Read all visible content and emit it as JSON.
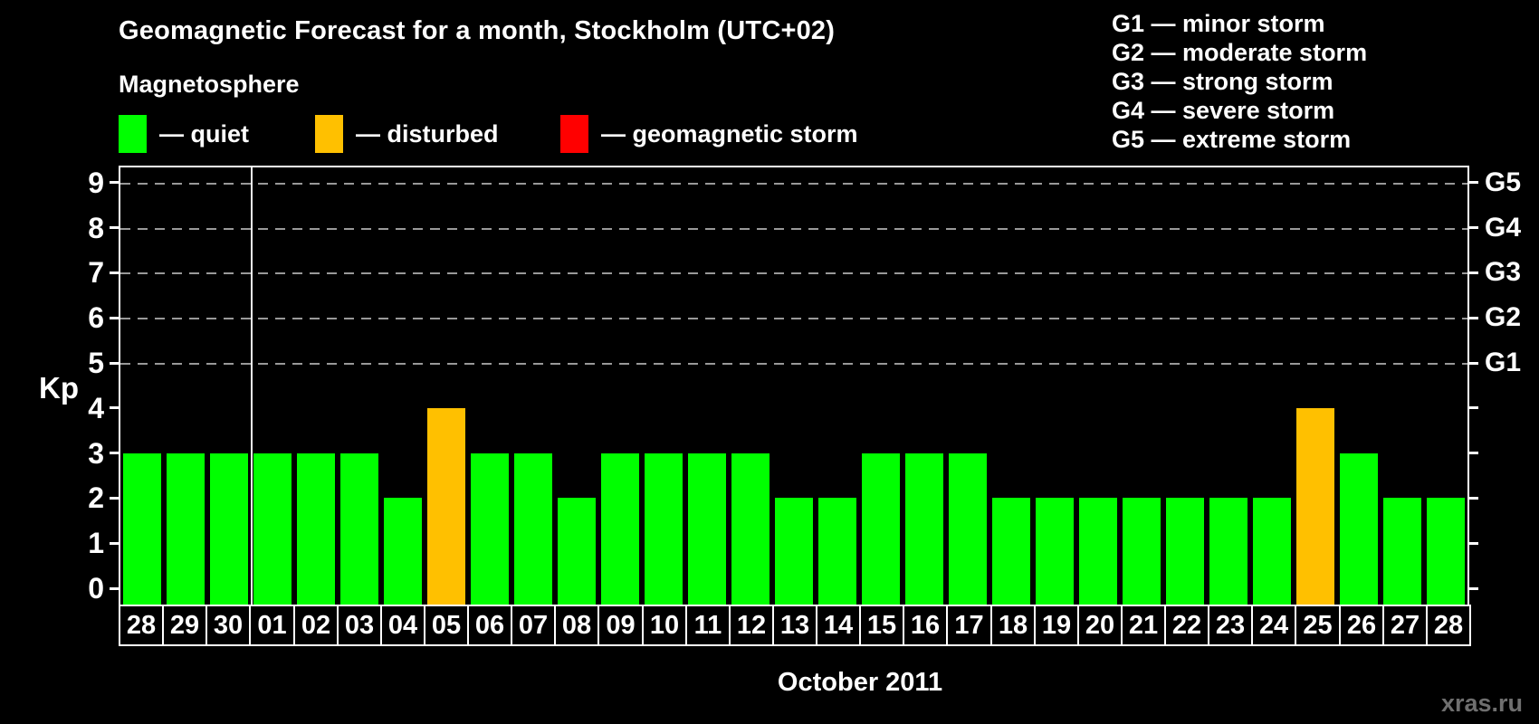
{
  "header": {
    "title": "Geomagnetic Forecast for a month, Stockholm (UTC+02)",
    "subtitle": "Magnetosphere"
  },
  "legend": {
    "items": [
      {
        "name": "quiet",
        "label": "— quiet",
        "color": "#00ff00"
      },
      {
        "name": "disturbed",
        "label": "— disturbed",
        "color": "#ffc000"
      },
      {
        "name": "geomagnetic-storm",
        "label": "— geomagnetic storm",
        "color": "#ff0000"
      }
    ]
  },
  "storm_scale_legend": {
    "lines": [
      "G1 — minor storm",
      "G2 — moderate storm",
      "G3 — strong storm",
      "G4 — severe storm",
      "G5 — extreme storm"
    ]
  },
  "chart_data": {
    "type": "bar",
    "title": "Geomagnetic Forecast for a month, Stockholm (UTC+02)",
    "xlabel": "October 2011",
    "ylabel": "Kp",
    "ylim": [
      0,
      9
    ],
    "yticks": [
      0,
      1,
      2,
      3,
      4,
      5,
      6,
      7,
      8,
      9
    ],
    "gridlines_at": [
      5,
      6,
      7,
      8,
      9
    ],
    "grid": "dashed horizontal at storm levels only",
    "legend_position": "top",
    "right_axis_labels": [
      {
        "label": "G1",
        "kp": 5
      },
      {
        "label": "G2",
        "kp": 6
      },
      {
        "label": "G3",
        "kp": 7
      },
      {
        "label": "G4",
        "kp": 8
      },
      {
        "label": "G5",
        "kp": 9
      }
    ],
    "categories": [
      "28",
      "29",
      "30",
      "01",
      "02",
      "03",
      "04",
      "05",
      "06",
      "07",
      "08",
      "09",
      "10",
      "11",
      "12",
      "13",
      "14",
      "15",
      "16",
      "17",
      "18",
      "19",
      "20",
      "21",
      "22",
      "23",
      "24",
      "25",
      "26",
      "27",
      "28"
    ],
    "values": [
      3,
      3,
      3,
      3,
      3,
      3,
      2,
      4,
      3,
      3,
      2,
      3,
      3,
      3,
      3,
      2,
      2,
      3,
      3,
      3,
      2,
      2,
      2,
      2,
      2,
      2,
      2,
      4,
      3,
      2,
      2
    ],
    "states": [
      "quiet",
      "quiet",
      "quiet",
      "quiet",
      "quiet",
      "quiet",
      "quiet",
      "disturbed",
      "quiet",
      "quiet",
      "quiet",
      "quiet",
      "quiet",
      "quiet",
      "quiet",
      "quiet",
      "quiet",
      "quiet",
      "quiet",
      "quiet",
      "quiet",
      "quiet",
      "quiet",
      "quiet",
      "quiet",
      "quiet",
      "quiet",
      "disturbed",
      "quiet",
      "quiet",
      "quiet"
    ],
    "month_separator_after_index": 2
  },
  "colors": {
    "background": "#000000",
    "quiet": "#00ff00",
    "disturbed": "#ffc000",
    "storm": "#ff0000",
    "gridline": "#999999",
    "axis": "#ffffff",
    "watermark": "#6f6f6f"
  },
  "watermark": "xras.ru"
}
